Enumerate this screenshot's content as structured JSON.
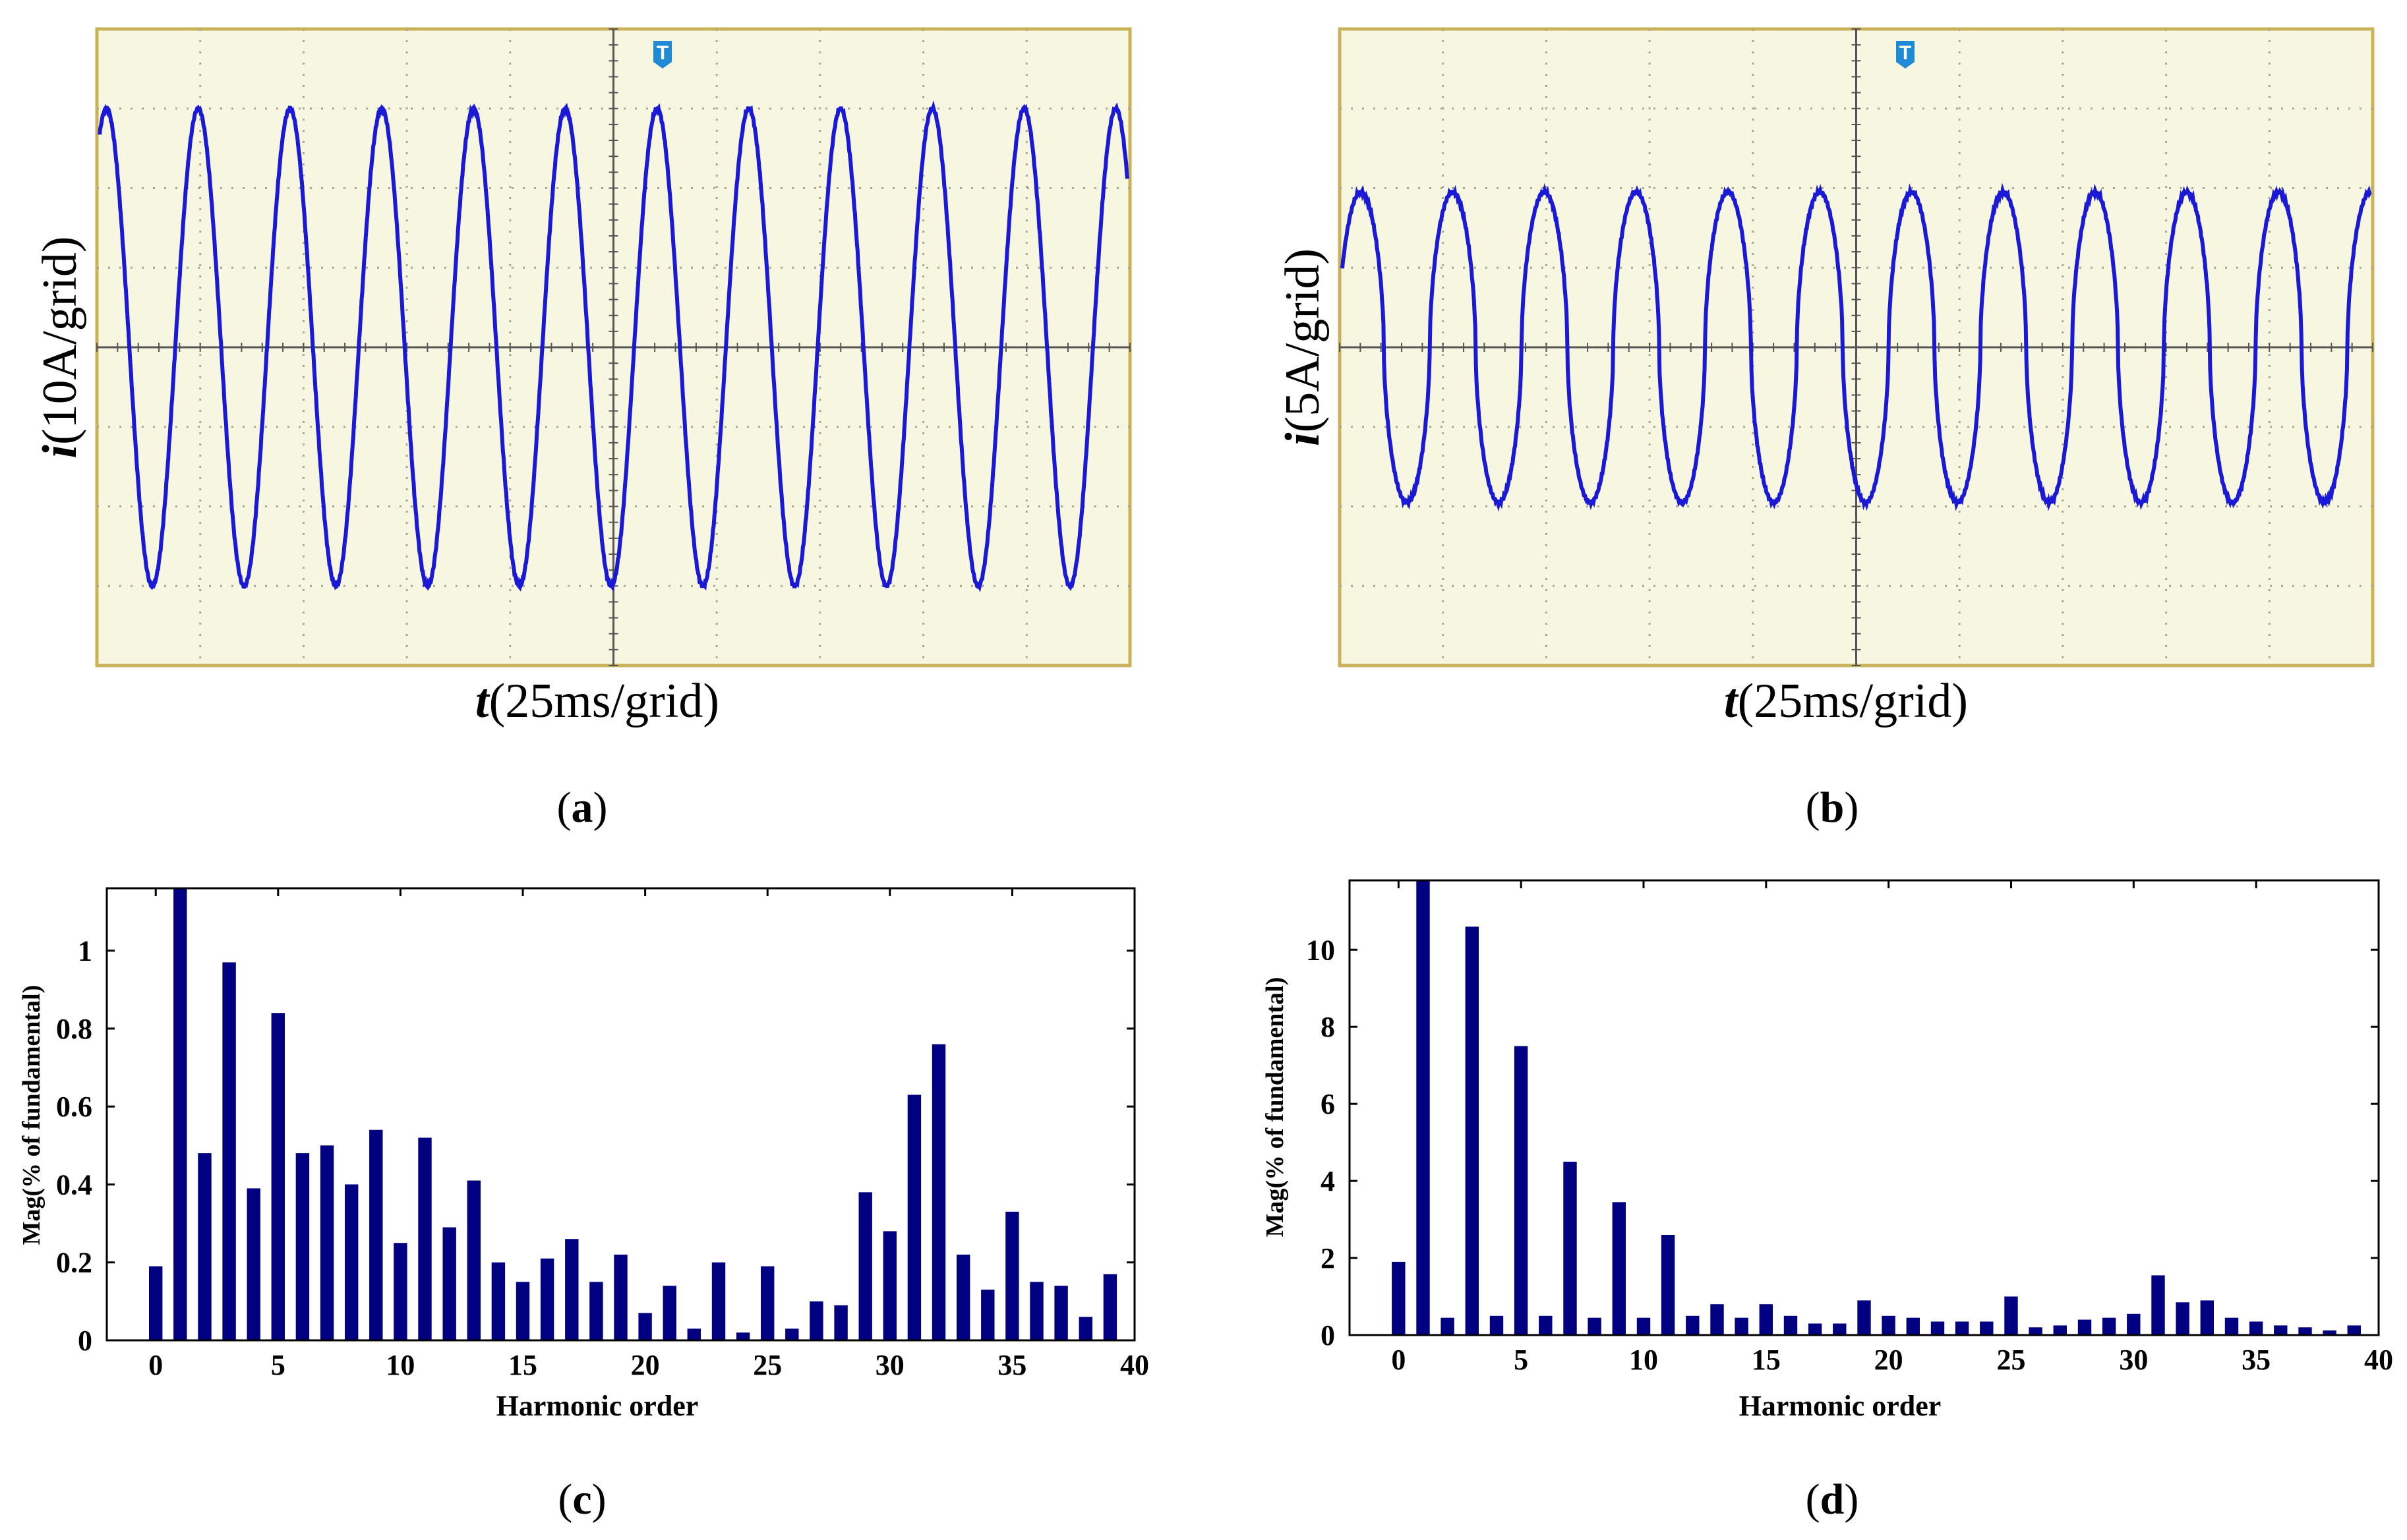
{
  "colors": {
    "scope_background": "#f7f7e1",
    "scope_border": "#c9b25a",
    "scope_grid": "#a8a890",
    "waveform": "#1a1ad6",
    "trigger_marker": "#1f8bd6",
    "bar_fill": "#000080"
  },
  "panels": {
    "a": {
      "caption_letter": "a",
      "y_label": {
        "symbol": "i",
        "unit": "(10A/grid)"
      },
      "x_label": {
        "symbol": "t",
        "unit": "(25ms/grid)"
      },
      "trigger_marker": "T",
      "waveform": {
        "cycles": 11.2,
        "amplitude_div": 3.0,
        "phase_deg": 63,
        "offset_div": 0,
        "shape": "sine"
      }
    },
    "b": {
      "caption_letter": "b",
      "y_label": {
        "symbol": "i",
        "unit": "(5A/grid)"
      },
      "x_label": {
        "symbol": "t",
        "unit": "(25ms/grid)"
      },
      "trigger_marker": "T",
      "waveform": {
        "cycles": 11.2,
        "amplitude_div": 1.95,
        "phase_deg": 17,
        "offset_div": 0,
        "shape": "flattened"
      }
    }
  },
  "chart_data": [
    {
      "panel": "c",
      "type": "bar",
      "caption_letter": "c",
      "xlabel": "Harmonic order",
      "ylabel": "Mag(% of fundamental)",
      "xlim": [
        -2,
        40
      ],
      "ylim": [
        0,
        1.16
      ],
      "xticks": [
        0,
        5,
        10,
        15,
        20,
        25,
        30,
        35,
        40
      ],
      "xtick_labels": [
        "0",
        "5",
        "10",
        "15",
        "20",
        "25",
        "30",
        "35",
        "40"
      ],
      "yticks": [
        0,
        0.2,
        0.4,
        0.6,
        0.8,
        1
      ],
      "ytick_labels": [
        "0",
        "0.2",
        "0.4",
        "0.6",
        "0.8",
        "1"
      ],
      "categories": [
        0,
        1,
        2,
        3,
        4,
        5,
        6,
        7,
        8,
        9,
        10,
        11,
        12,
        13,
        14,
        15,
        16,
        17,
        18,
        19,
        20,
        21,
        22,
        23,
        24,
        25,
        26,
        27,
        28,
        29,
        30,
        31,
        32,
        33,
        34,
        35,
        36,
        37,
        38,
        39
      ],
      "values": [
        0.19,
        1.16,
        0.48,
        0.97,
        0.39,
        0.84,
        0.48,
        0.5,
        0.4,
        0.54,
        0.25,
        0.52,
        0.29,
        0.41,
        0.2,
        0.15,
        0.21,
        0.26,
        0.15,
        0.22,
        0.07,
        0.14,
        0.03,
        0.2,
        0.02,
        0.19,
        0.03,
        0.1,
        0.09,
        0.38,
        0.28,
        0.63,
        0.76,
        0.22,
        0.13,
        0.33,
        0.15,
        0.14,
        0.06,
        0.17
      ]
    },
    {
      "panel": "d",
      "type": "bar",
      "caption_letter": "d",
      "xlabel": "Harmonic order",
      "ylabel": "Mag(% of fundamental)",
      "xlim": [
        -2,
        40
      ],
      "ylim": [
        0,
        11.8
      ],
      "xticks": [
        0,
        5,
        10,
        15,
        20,
        25,
        30,
        35,
        40
      ],
      "xtick_labels": [
        "0",
        "5",
        "10",
        "15",
        "20",
        "25",
        "30",
        "35",
        "40"
      ],
      "yticks": [
        0,
        2,
        4,
        6,
        8,
        10
      ],
      "ytick_labels": [
        "0",
        "2",
        "4",
        "6",
        "8",
        "10"
      ],
      "categories": [
        0,
        1,
        2,
        3,
        4,
        5,
        6,
        7,
        8,
        9,
        10,
        11,
        12,
        13,
        14,
        15,
        16,
        17,
        18,
        19,
        20,
        21,
        22,
        23,
        24,
        25,
        26,
        27,
        28,
        29,
        30,
        31,
        32,
        33,
        34,
        35,
        36,
        37,
        38,
        39
      ],
      "values": [
        1.9,
        11.8,
        0.45,
        10.6,
        0.5,
        7.5,
        0.5,
        4.5,
        0.45,
        3.45,
        0.45,
        2.6,
        0.5,
        0.8,
        0.45,
        0.8,
        0.5,
        0.3,
        0.3,
        0.9,
        0.5,
        0.45,
        0.35,
        0.35,
        0.35,
        1.0,
        0.2,
        0.25,
        0.4,
        0.45,
        0.55,
        1.55,
        0.85,
        0.9,
        0.45,
        0.35,
        0.25,
        0.2,
        0.12,
        0.25
      ]
    }
  ]
}
